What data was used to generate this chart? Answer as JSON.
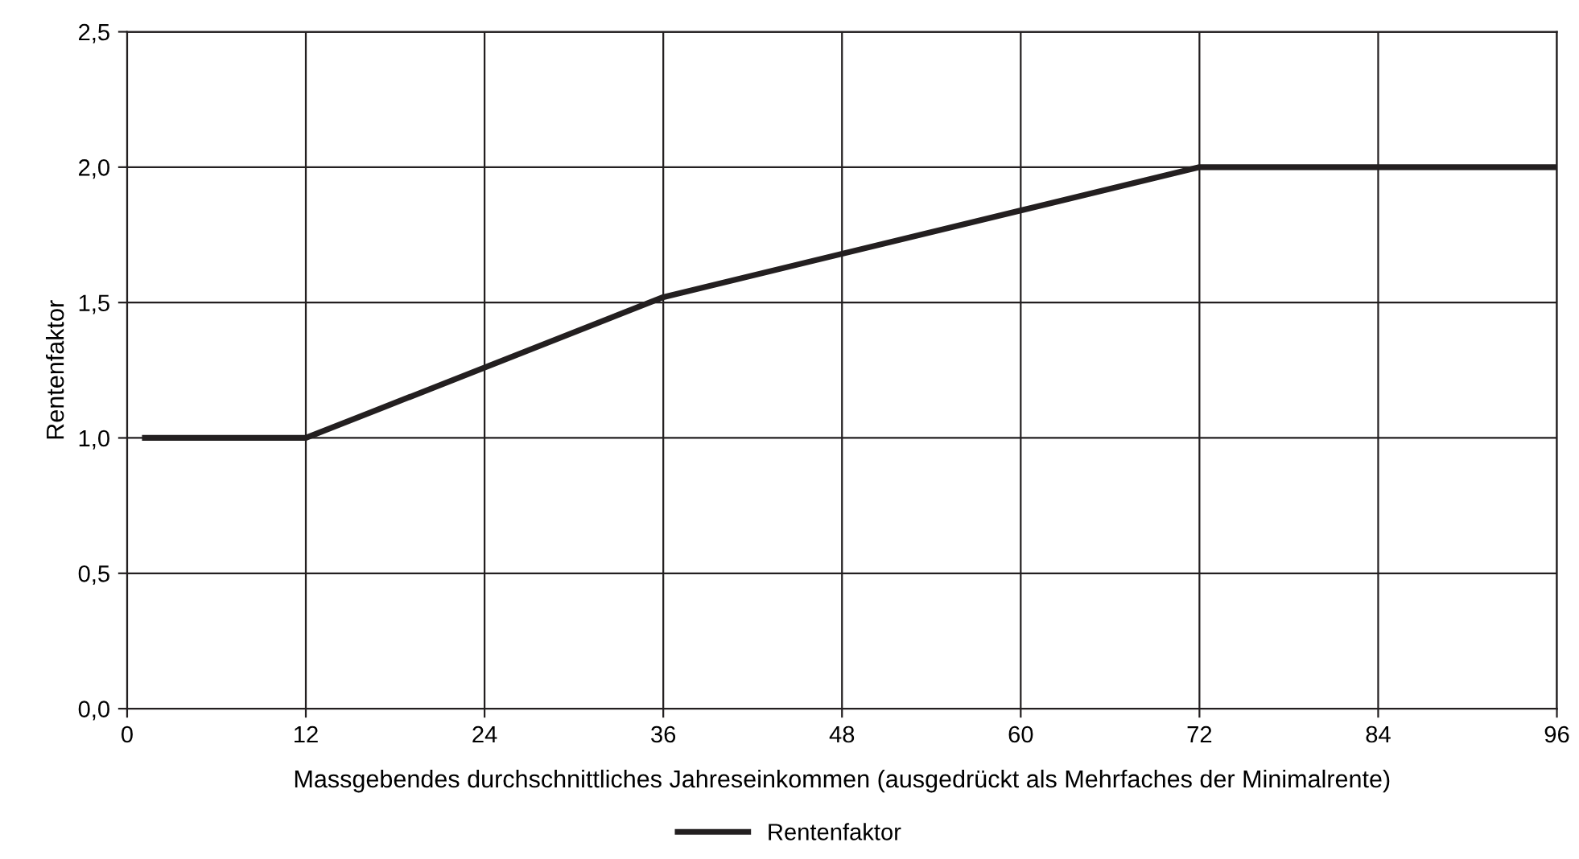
{
  "chart_data": {
    "type": "line",
    "xlabel": "Massgebendes durchschnittliches Jahreseinkommen (ausgedrückt als Mehrfaches der Minimalrente)",
    "ylabel": "Rentenfaktor",
    "x": [
      1,
      12,
      36,
      72,
      96
    ],
    "series": [
      {
        "name": "Rentenfaktor",
        "color": "#231f20",
        "values": [
          1.0,
          1.0,
          1.52,
          2.0,
          2.0
        ]
      }
    ],
    "xlim": [
      0,
      96
    ],
    "xticks": [
      0,
      12,
      24,
      36,
      48,
      60,
      72,
      84,
      96
    ],
    "ylim": [
      0,
      2.5
    ],
    "yticks": [
      {
        "value": 0,
        "label": "0,0"
      },
      {
        "value": 0.5,
        "label": "0,5"
      },
      {
        "value": 1.0,
        "label": "1,0"
      },
      {
        "value": 1.5,
        "label": "1,5"
      },
      {
        "value": 2.0,
        "label": "2,0"
      },
      {
        "value": 2.5,
        "label": "2,5"
      }
    ],
    "grid": true,
    "legend": "bottom",
    "marker": "none",
    "line_style": "solid"
  }
}
